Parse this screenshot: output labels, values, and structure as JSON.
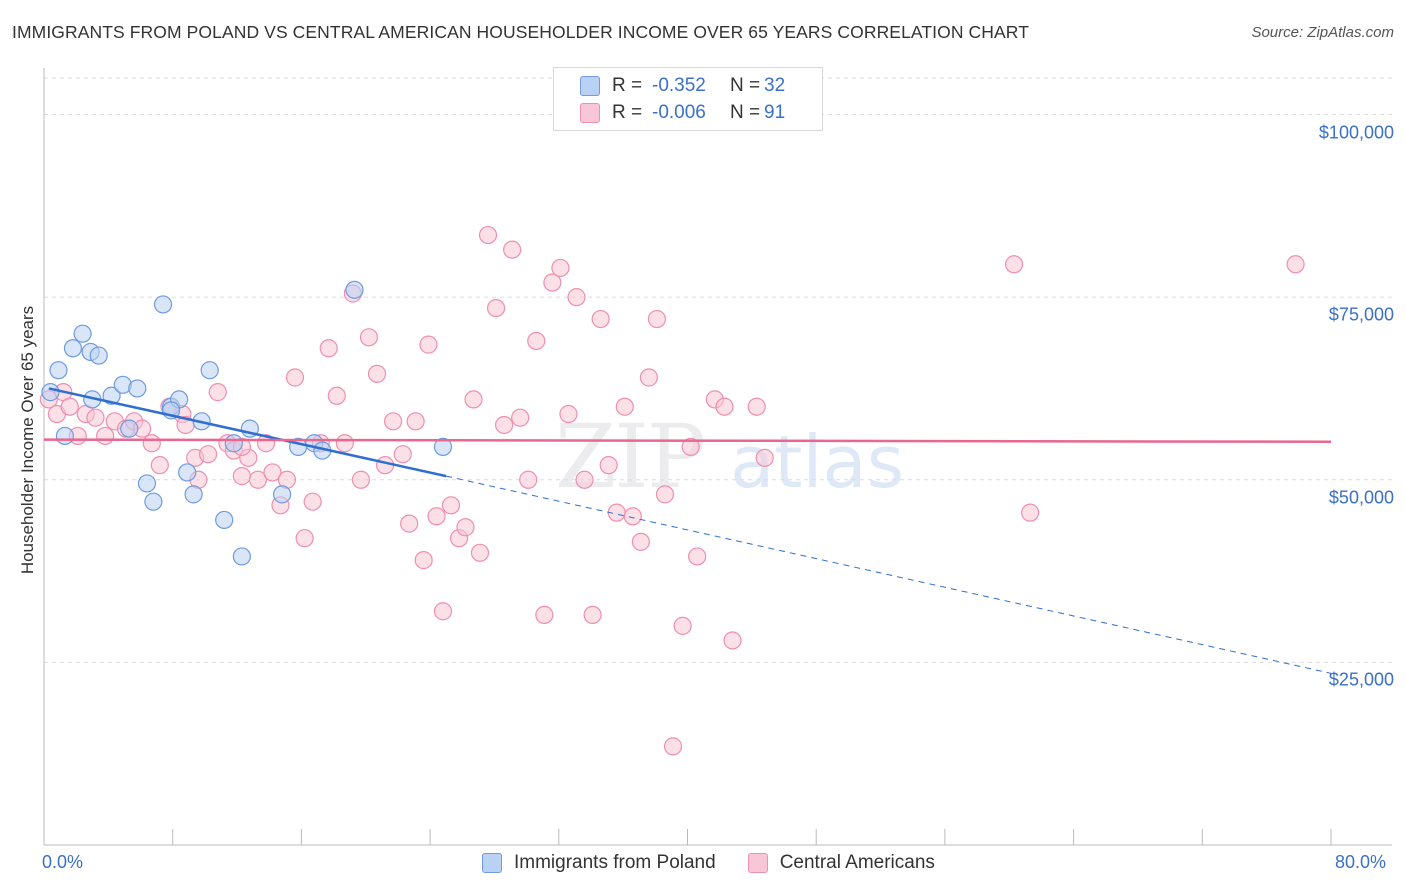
{
  "title": "IMMIGRANTS FROM POLAND VS CENTRAL AMERICAN HOUSEHOLDER INCOME OVER 65 YEARS CORRELATION CHART",
  "source": "Source: ZipAtlas.com",
  "watermark": {
    "zip": "ZIP",
    "atlas": "atlas"
  },
  "legend": {
    "rows": [
      {
        "r_label": "R =",
        "r_value": "-0.352",
        "n_label": "N =",
        "n_value": "32"
      },
      {
        "r_label": "R =",
        "r_value": "-0.006",
        "n_label": "N =",
        "n_value": "91"
      }
    ]
  },
  "bottom_legend": [
    "Immigrants from Poland",
    "Central Americans"
  ],
  "chart_data": {
    "type": "scatter",
    "title": "IMMIGRANTS FROM POLAND VS CENTRAL AMERICAN HOUSEHOLDER INCOME OVER 65 YEARS CORRELATION CHART",
    "xlabel": "",
    "ylabel": "Householder Income Over 65 years",
    "xlim": [
      0,
      80
    ],
    "ylim": [
      0,
      105000
    ],
    "x_tick_labels": [
      "0.0%",
      "80.0%"
    ],
    "y_ticks": [
      25000,
      50000,
      75000,
      100000
    ],
    "y_tick_labels": [
      "$25,000",
      "$50,000",
      "$75,000",
      "$100,000"
    ],
    "grid": true,
    "colors": {
      "poland": "#6f9be0",
      "central": "#f08fae",
      "poland_fill": "#b9d1f3",
      "central_fill": "#f8c6d6",
      "poland_line": "#2f6fd0",
      "central_line": "#e9668f",
      "accent": "#3a70c9"
    },
    "series": [
      {
        "name": "Immigrants from Poland",
        "points": [
          [
            0.4,
            62000
          ],
          [
            0.9,
            65000
          ],
          [
            1.3,
            56000
          ],
          [
            1.8,
            68000
          ],
          [
            2.4,
            70000
          ],
          [
            2.9,
            67500
          ],
          [
            3.4,
            67000
          ],
          [
            4.2,
            61500
          ],
          [
            4.9,
            63000
          ],
          [
            5.3,
            57000
          ],
          [
            5.8,
            62500
          ],
          [
            6.4,
            49500
          ],
          [
            6.8,
            47000
          ],
          [
            7.4,
            74000
          ],
          [
            7.9,
            60000
          ],
          [
            8.4,
            61000
          ],
          [
            8.9,
            51000
          ],
          [
            9.3,
            48000
          ],
          [
            10.3,
            65000
          ],
          [
            11.2,
            44500
          ],
          [
            11.8,
            55000
          ],
          [
            12.3,
            39500
          ],
          [
            12.8,
            57000
          ],
          [
            14.8,
            48000
          ],
          [
            15.8,
            54500
          ],
          [
            16.8,
            55000
          ],
          [
            17.3,
            54000
          ],
          [
            19.3,
            76000
          ],
          [
            24.8,
            54500
          ],
          [
            7.9,
            59500
          ],
          [
            3.0,
            61000
          ],
          [
            9.8,
            58000
          ]
        ],
        "trend": {
          "x0": 0.3,
          "y0": 62500,
          "x1": 25,
          "y1": 50500,
          "dash_to_x": 80,
          "dash_to_y": 23500
        }
      },
      {
        "name": "Central Americans",
        "points": [
          [
            0.3,
            61000
          ],
          [
            0.8,
            59000
          ],
          [
            1.2,
            62000
          ],
          [
            1.6,
            60000
          ],
          [
            2.1,
            56000
          ],
          [
            2.6,
            59000
          ],
          [
            3.2,
            58500
          ],
          [
            3.8,
            56000
          ],
          [
            4.4,
            58000
          ],
          [
            5.1,
            57000
          ],
          [
            5.6,
            58000
          ],
          [
            6.1,
            57000
          ],
          [
            6.7,
            55000
          ],
          [
            7.2,
            52000
          ],
          [
            7.8,
            60000
          ],
          [
            8.6,
            59000
          ],
          [
            8.8,
            57500
          ],
          [
            9.4,
            53000
          ],
          [
            9.6,
            50000
          ],
          [
            10.2,
            53500
          ],
          [
            10.8,
            62000
          ],
          [
            11.4,
            55000
          ],
          [
            11.8,
            54000
          ],
          [
            12.3,
            50500
          ],
          [
            12.7,
            53000
          ],
          [
            13.3,
            50000
          ],
          [
            13.8,
            55000
          ],
          [
            14.2,
            51000
          ],
          [
            14.7,
            46500
          ],
          [
            15.1,
            50000
          ],
          [
            15.6,
            64000
          ],
          [
            16.2,
            42000
          ],
          [
            16.7,
            47000
          ],
          [
            17.2,
            55000
          ],
          [
            17.7,
            68000
          ],
          [
            18.2,
            61500
          ],
          [
            18.7,
            55000
          ],
          [
            19.2,
            75500
          ],
          [
            19.7,
            50000
          ],
          [
            20.2,
            69500
          ],
          [
            20.7,
            64500
          ],
          [
            21.2,
            52000
          ],
          [
            21.7,
            58000
          ],
          [
            22.3,
            53500
          ],
          [
            22.7,
            44000
          ],
          [
            23.1,
            58000
          ],
          [
            23.6,
            39000
          ],
          [
            23.9,
            68500
          ],
          [
            24.4,
            45000
          ],
          [
            24.8,
            32000
          ],
          [
            25.3,
            46500
          ],
          [
            25.8,
            42000
          ],
          [
            26.2,
            43500
          ],
          [
            26.7,
            61000
          ],
          [
            27.1,
            40000
          ],
          [
            27.6,
            83500
          ],
          [
            28.1,
            73500
          ],
          [
            28.6,
            57500
          ],
          [
            29.1,
            81500
          ],
          [
            29.6,
            58500
          ],
          [
            30.1,
            50000
          ],
          [
            30.6,
            69000
          ],
          [
            31.1,
            31500
          ],
          [
            31.6,
            77000
          ],
          [
            32.1,
            79000
          ],
          [
            32.6,
            59000
          ],
          [
            33.1,
            75000
          ],
          [
            33.6,
            50000
          ],
          [
            34.1,
            31500
          ],
          [
            34.6,
            72000
          ],
          [
            35.1,
            52000
          ],
          [
            35.6,
            45500
          ],
          [
            36.1,
            60000
          ],
          [
            36.6,
            45000
          ],
          [
            37.1,
            41500
          ],
          [
            37.6,
            64000
          ],
          [
            38.1,
            72000
          ],
          [
            38.6,
            48000
          ],
          [
            39.1,
            13500
          ],
          [
            39.7,
            30000
          ],
          [
            40.2,
            54500
          ],
          [
            40.6,
            39500
          ],
          [
            41.7,
            61000
          ],
          [
            42.3,
            60000
          ],
          [
            42.8,
            28000
          ],
          [
            44.3,
            60000
          ],
          [
            44.8,
            53000
          ],
          [
            60.3,
            79500
          ],
          [
            61.3,
            45500
          ],
          [
            77.8,
            79500
          ],
          [
            12.3,
            54500
          ]
        ],
        "trend": {
          "x0": 0,
          "y0": 55500,
          "x1": 80,
          "y1": 55200
        }
      }
    ]
  }
}
